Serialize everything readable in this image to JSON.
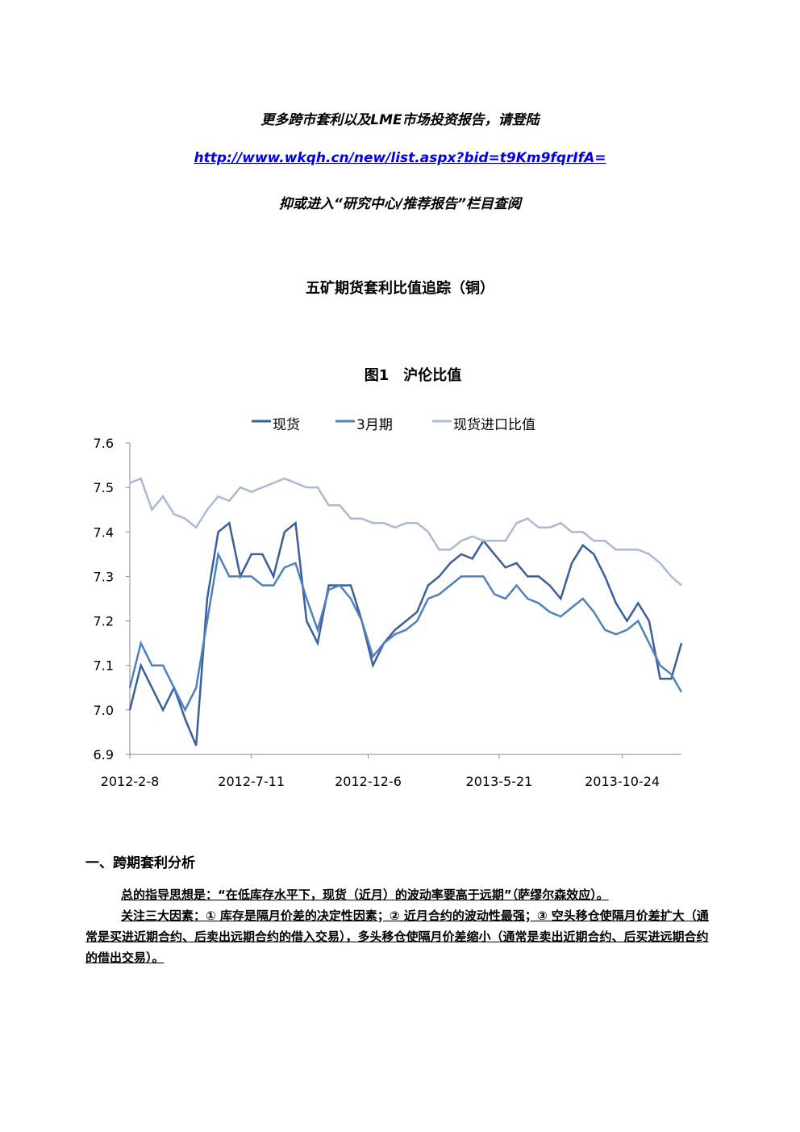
{
  "header": {
    "line1": "更多跨市套利以及LME市场投资报告，请登陆",
    "link": "http://www.wkqh.cn/new/list.aspx?bid=t9Km9fqrIfA=",
    "line3": "抑或进入“研究中心/推荐报告”栏目查阅"
  },
  "report_title": "五矿期货套利比值追踪（铜）",
  "chart_data": {
    "type": "line",
    "title": "图1　沪伦比值",
    "x": [
      "2012-2-8",
      "2012-2-22",
      "2012-3-7",
      "2012-3-21",
      "2012-4-4",
      "2012-4-18",
      "2012-5-2",
      "2012-5-16",
      "2012-5-30",
      "2012-6-13",
      "2012-6-27",
      "2012-7-11",
      "2012-7-25",
      "2012-8-8",
      "2012-8-22",
      "2012-9-5",
      "2012-9-19",
      "2012-10-3",
      "2012-10-17",
      "2012-10-31",
      "2012-11-14",
      "2012-11-28",
      "2012-12-12",
      "2012-12-26",
      "2013-1-9",
      "2013-1-23",
      "2013-2-6",
      "2013-2-20",
      "2013-3-6",
      "2013-3-20",
      "2013-4-3",
      "2013-4-17",
      "2013-5-1",
      "2013-5-15",
      "2013-5-29",
      "2013-6-12",
      "2013-6-26",
      "2013-7-10",
      "2013-7-24",
      "2013-8-7",
      "2013-8-21",
      "2013-9-4",
      "2013-9-18",
      "2013-10-2",
      "2013-10-16",
      "2013-10-30",
      "2013-11-13",
      "2013-11-27",
      "2013-12-11",
      "2013-12-25",
      "2014-1-7"
    ],
    "series": [
      {
        "name": "现货",
        "color": "#3a5f9a",
        "values": [
          7.0,
          7.1,
          7.05,
          7.0,
          7.05,
          6.98,
          6.92,
          7.25,
          7.4,
          7.42,
          7.3,
          7.35,
          7.35,
          7.3,
          7.4,
          7.42,
          7.2,
          7.15,
          7.28,
          7.28,
          7.28,
          7.2,
          7.1,
          7.15,
          7.18,
          7.2,
          7.22,
          7.28,
          7.3,
          7.33,
          7.35,
          7.34,
          7.38,
          7.35,
          7.32,
          7.33,
          7.3,
          7.3,
          7.28,
          7.25,
          7.33,
          7.37,
          7.35,
          7.3,
          7.24,
          7.2,
          7.24,
          7.2,
          7.07,
          7.07,
          7.15
        ]
      },
      {
        "name": "3月期",
        "color": "#4f81bd",
        "values": [
          7.05,
          7.15,
          7.1,
          7.1,
          7.05,
          7.0,
          7.05,
          7.2,
          7.35,
          7.3,
          7.3,
          7.3,
          7.28,
          7.28,
          7.32,
          7.33,
          7.25,
          7.18,
          7.27,
          7.28,
          7.25,
          7.2,
          7.12,
          7.15,
          7.17,
          7.18,
          7.2,
          7.25,
          7.26,
          7.28,
          7.3,
          7.3,
          7.3,
          7.26,
          7.25,
          7.28,
          7.25,
          7.24,
          7.22,
          7.21,
          7.23,
          7.25,
          7.22,
          7.18,
          7.17,
          7.18,
          7.2,
          7.15,
          7.1,
          7.08,
          7.04
        ]
      },
      {
        "name": "现货进口比值",
        "color": "#a9b9d6",
        "values": [
          7.51,
          7.52,
          7.45,
          7.48,
          7.44,
          7.43,
          7.41,
          7.45,
          7.48,
          7.47,
          7.5,
          7.49,
          7.5,
          7.51,
          7.52,
          7.51,
          7.5,
          7.5,
          7.46,
          7.46,
          7.43,
          7.43,
          7.42,
          7.42,
          7.41,
          7.42,
          7.42,
          7.4,
          7.36,
          7.36,
          7.38,
          7.39,
          7.38,
          7.38,
          7.38,
          7.42,
          7.43,
          7.41,
          7.41,
          7.42,
          7.4,
          7.4,
          7.38,
          7.38,
          7.36,
          7.36,
          7.36,
          7.35,
          7.33,
          7.3,
          7.28
        ]
      }
    ],
    "xlim": [
      "2012-2-8",
      "2014-1-7"
    ],
    "xticks": [
      "2012-2-8",
      "2012-7-11",
      "2012-12-6",
      "2013-5-21",
      "2013-10-24"
    ],
    "ylim": [
      6.9,
      7.6
    ],
    "yticks": [
      {
        "value": 6.9,
        "label": "6.9"
      },
      {
        "value": 7.0,
        "label": "7.0"
      },
      {
        "value": 7.1,
        "label": "7.1"
      },
      {
        "value": 7.2,
        "label": "7.2"
      },
      {
        "value": 7.3,
        "label": "7.3"
      },
      {
        "value": 7.4,
        "label": "7.4"
      },
      {
        "value": 7.5,
        "label": "7.5"
      },
      {
        "value": 7.6,
        "label": "7.6"
      }
    ],
    "legend": "top"
  },
  "section": {
    "heading": "一、跨期套利分析",
    "para1": "总的指导思想是：“在低库存水平下，现货（近月）的波动率要高于远期”（萨缪尔森效应）。",
    "para2": "关注三大因素：① 库存是隔月价差的决定性因素；② 近月合约的波动性最强；③ 空头移仓使隔月价差扩大（通常是买进近期合约、后卖出远期合约的借入交易），多头移仓使隔月价差缩小（通常是卖出近期合约、后买进远期合约的借出交易）。"
  }
}
